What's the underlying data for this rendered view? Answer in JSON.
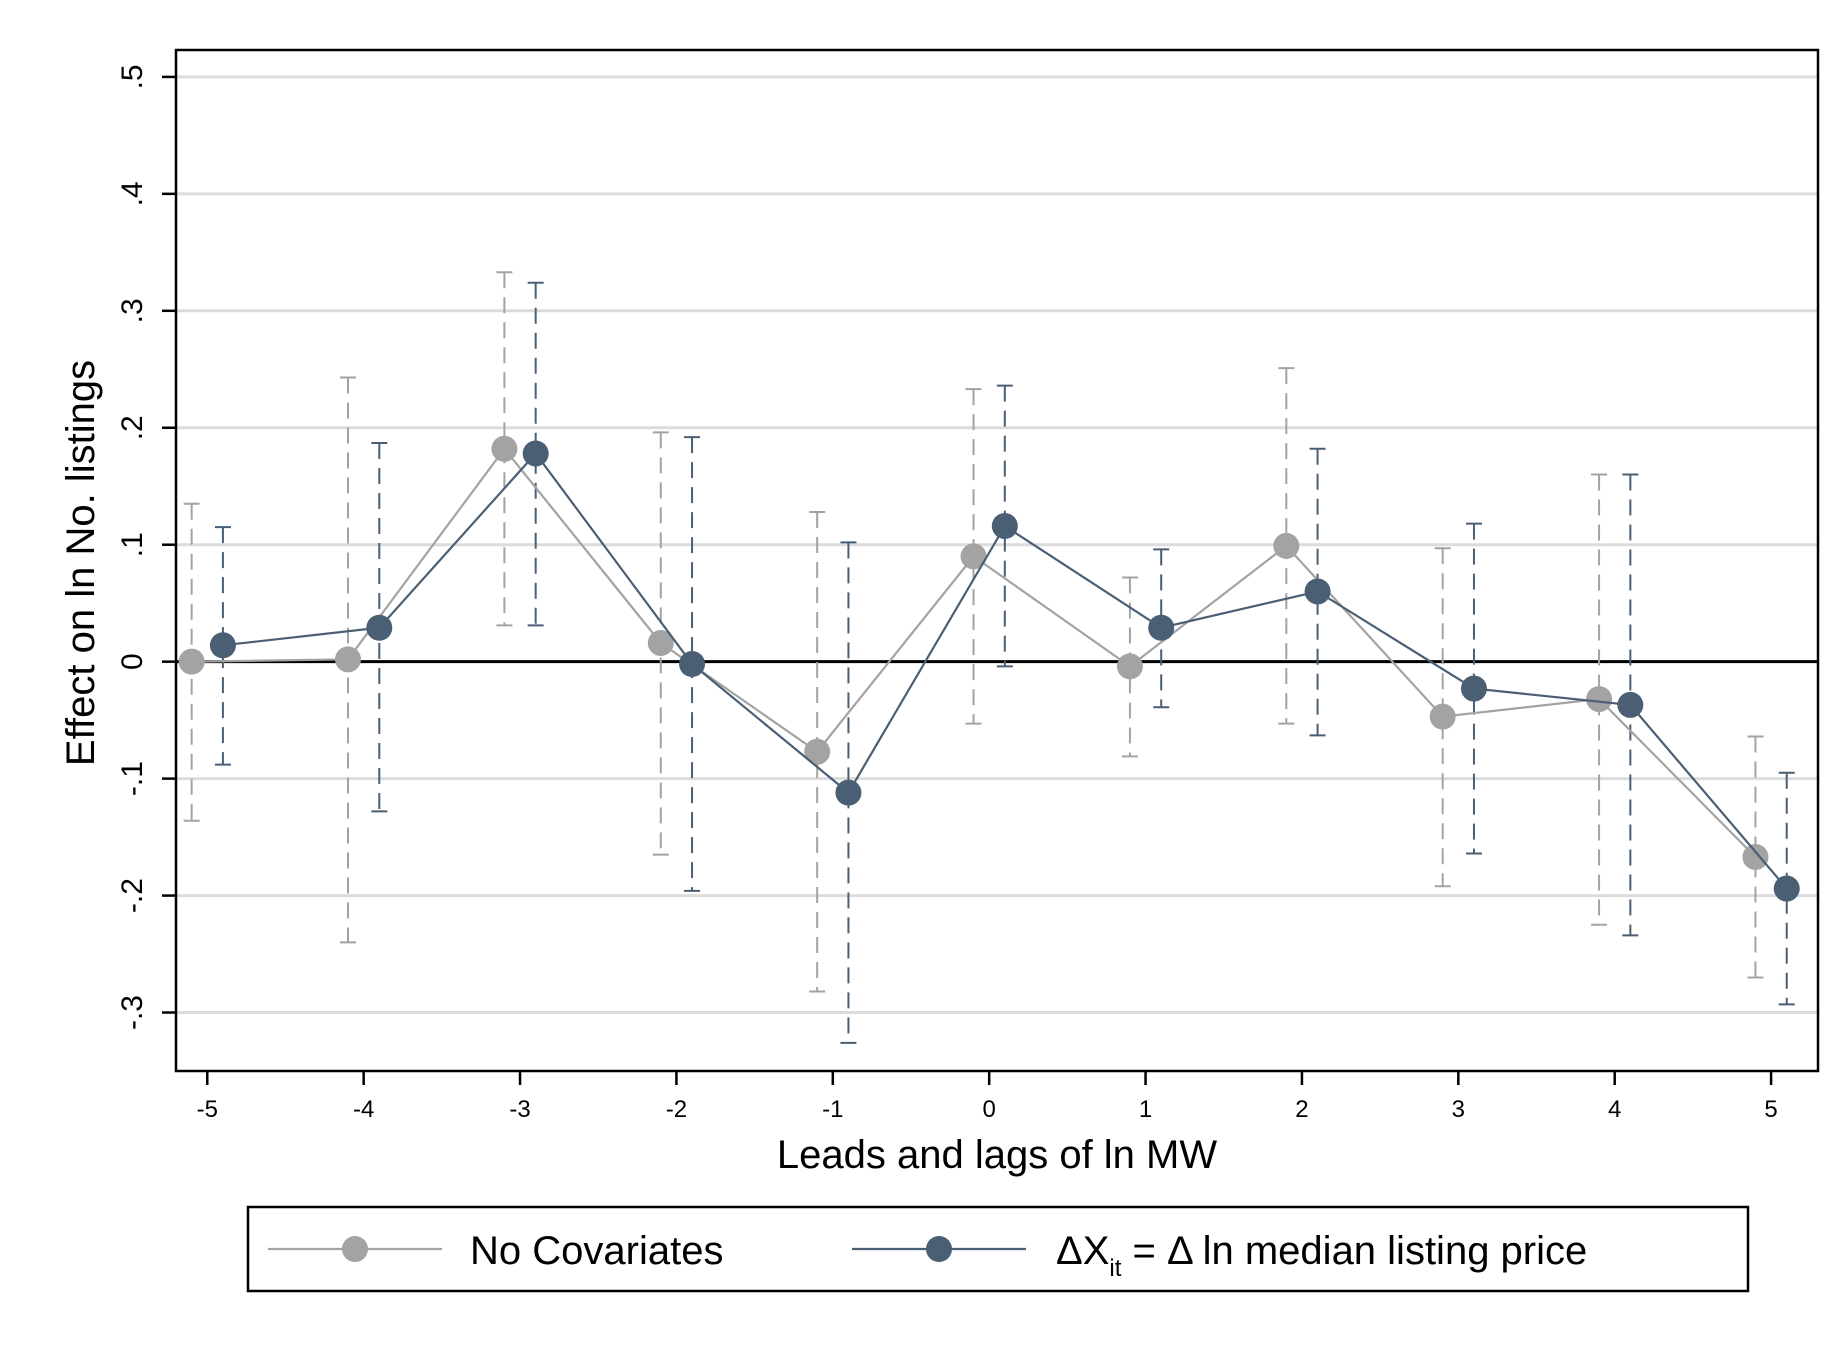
{
  "chart_data": {
    "type": "line",
    "title": "",
    "xlabel": "Leads and lags of ln MW",
    "ylabel": "Effect on ln No. listings",
    "x_ticks": [
      "-5",
      "-4",
      "-3",
      "-2",
      "-1",
      "0",
      "1",
      "2",
      "3",
      "4",
      "5"
    ],
    "y_ticks": [
      "-.3",
      "-.2",
      "-.1",
      "0",
      ".1",
      ".2",
      ".3",
      ".4",
      ".5"
    ],
    "y_tick_values": [
      -0.3,
      -0.2,
      -0.1,
      0,
      0.1,
      0.2,
      0.3,
      0.4,
      0.5
    ],
    "xlim": [
      -5.2,
      5.3
    ],
    "ylim": [
      -0.35,
      0.523
    ],
    "grid": true,
    "zero_line": true,
    "legend_position": "bottom",
    "series": [
      {
        "name": "No Covariates",
        "color": "#a3a3a3",
        "x_offset": -0.1,
        "points": [
          {
            "x": -5,
            "y": 0.0,
            "lo": -0.136,
            "hi": 0.135
          },
          {
            "x": -4,
            "y": 0.002,
            "lo": -0.24,
            "hi": 0.243
          },
          {
            "x": -3,
            "y": 0.182,
            "lo": 0.031,
            "hi": 0.333
          },
          {
            "x": -2,
            "y": 0.016,
            "lo": -0.165,
            "hi": 0.196
          },
          {
            "x": -1,
            "y": -0.077,
            "lo": -0.282,
            "hi": 0.128
          },
          {
            "x": 0,
            "y": 0.09,
            "lo": -0.053,
            "hi": 0.233
          },
          {
            "x": 1,
            "y": -0.004,
            "lo": -0.081,
            "hi": 0.072
          },
          {
            "x": 2,
            "y": 0.099,
            "lo": -0.053,
            "hi": 0.251
          },
          {
            "x": 3,
            "y": -0.047,
            "lo": -0.192,
            "hi": 0.097
          },
          {
            "x": 4,
            "y": -0.032,
            "lo": -0.225,
            "hi": 0.16
          },
          {
            "x": 5,
            "y": -0.167,
            "lo": -0.27,
            "hi": -0.064
          }
        ]
      },
      {
        "name_parts": {
          "main": "ΔX",
          "sub": "it",
          "rest": " = Δ ln median listing price"
        },
        "color": "#4a5e74",
        "x_offset": 0.1,
        "points": [
          {
            "x": -5,
            "y": 0.014,
            "lo": -0.088,
            "hi": 0.115
          },
          {
            "x": -4,
            "y": 0.029,
            "lo": -0.128,
            "hi": 0.187
          },
          {
            "x": -3,
            "y": 0.178,
            "lo": 0.031,
            "hi": 0.324
          },
          {
            "x": -2,
            "y": -0.002,
            "lo": -0.196,
            "hi": 0.192
          },
          {
            "x": -1,
            "y": -0.112,
            "lo": -0.326,
            "hi": 0.102
          },
          {
            "x": 0,
            "y": 0.116,
            "lo": -0.004,
            "hi": 0.236
          },
          {
            "x": 1,
            "y": 0.029,
            "lo": -0.039,
            "hi": 0.096
          },
          {
            "x": 2,
            "y": 0.06,
            "lo": -0.063,
            "hi": 0.182
          },
          {
            "x": 3,
            "y": -0.023,
            "lo": -0.164,
            "hi": 0.118
          },
          {
            "x": 4,
            "y": -0.037,
            "lo": -0.234,
            "hi": 0.16
          },
          {
            "x": 5,
            "y": -0.194,
            "lo": -0.293,
            "hi": -0.095
          }
        ]
      }
    ],
    "legend": {
      "item1": "No Covariates",
      "item2_main": "ΔX",
      "item2_sub": "it",
      "item2_rest": " = Δ ln median listing price"
    }
  }
}
